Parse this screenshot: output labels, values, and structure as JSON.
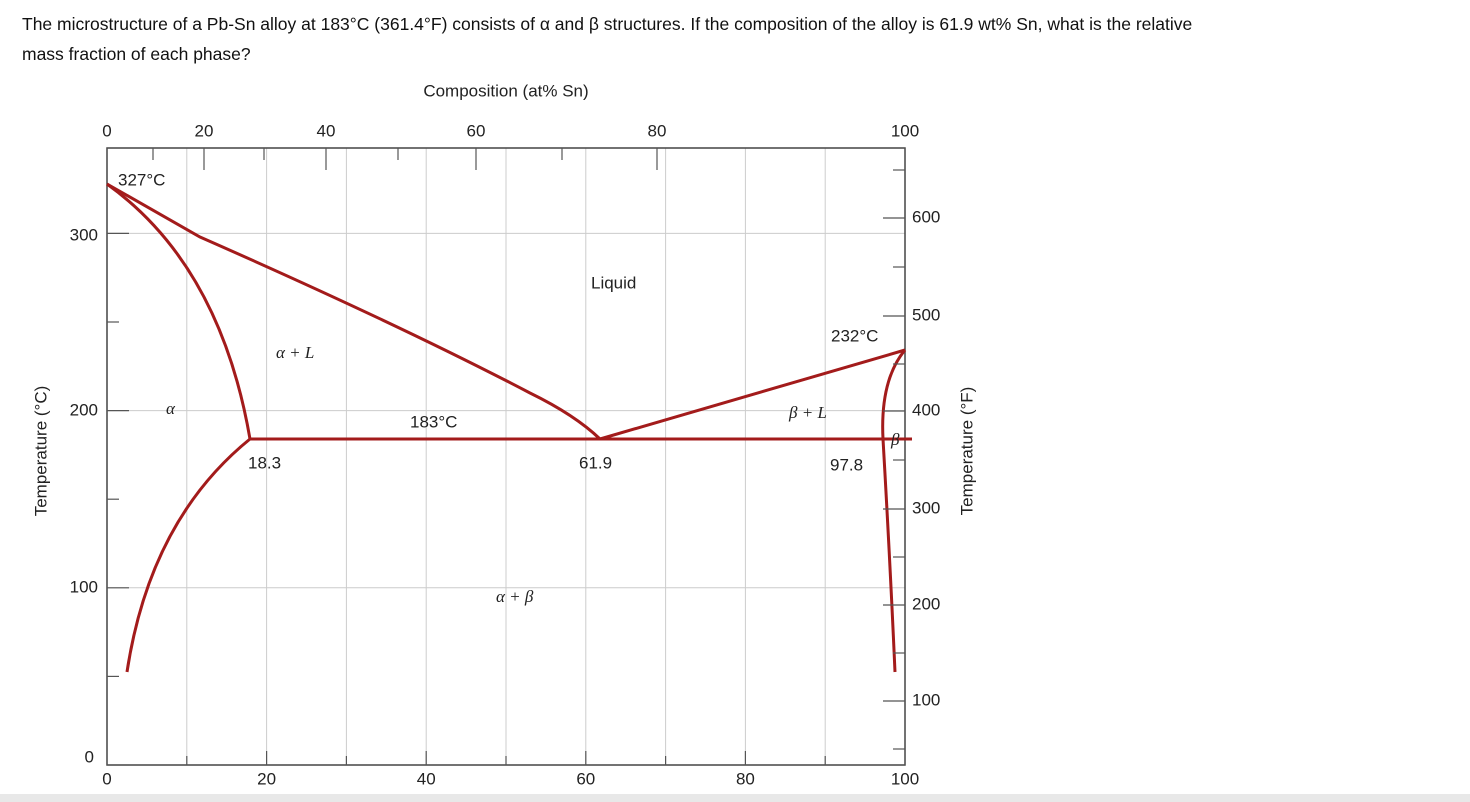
{
  "question": {
    "lines": [
      "The microstructure of a Pb-Sn alloy at 183°C (361.4°F) consists of α and β structures. If the composition of the alloy is 61.9 wt% Sn, what is the relative",
      "mass fraction of each phase?"
    ]
  },
  "diagram": {
    "top_axis_title": "Composition (at% Sn)",
    "top_ticks": [
      "0",
      "20",
      "40",
      "60",
      "80",
      "100"
    ],
    "bottom_ticks": [
      "0",
      "20",
      "40",
      "60",
      "80",
      "100"
    ],
    "left_axis_title": "Temperature (°C)",
    "left_ticks": [
      "0",
      "100",
      "200",
      "300"
    ],
    "right_axis_title": "Temperature (°F)",
    "right_ticks": [
      "100",
      "200",
      "300",
      "400",
      "500",
      "600"
    ],
    "labels": {
      "pb_melt": "327°C",
      "sn_melt": "232°C",
      "eutectic_temp": "183°C",
      "liquid": "Liquid",
      "alpha_liquid": "α + L",
      "beta_liquid": "β + L",
      "alpha": "α",
      "beta": "β",
      "alpha_beta": "α + β",
      "c_alpha": "18.3",
      "c_eutectic": "61.9",
      "c_beta": "97.8"
    }
  }
}
